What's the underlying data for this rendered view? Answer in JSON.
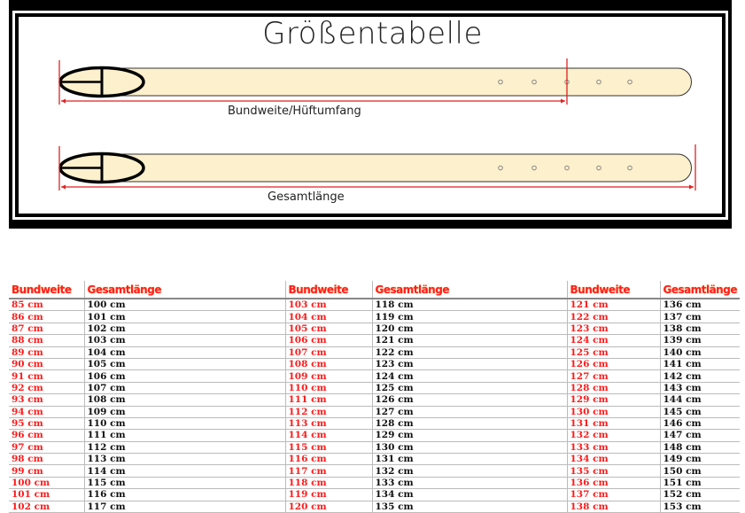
{
  "title": "Größentabelle",
  "diagram": {
    "label_waist": "Bundweite/Hüftumfang",
    "label_total": "Gesamtlänge",
    "belt_color": "#fdf0cc",
    "measure_color": "#e02020"
  },
  "table": {
    "headers": [
      "Bundweite",
      "Gesamtlänge",
      "Bundweite",
      "Gesamtlänge",
      "Bundweite",
      "Gesamtlänge"
    ],
    "rows": [
      [
        "85 cm",
        "100 cm",
        "103 cm",
        "118 cm",
        "121 cm",
        "136 cm"
      ],
      [
        "86 cm",
        "101 cm",
        "104 cm",
        "119 cm",
        "122 cm",
        "137 cm"
      ],
      [
        "87 cm",
        "102 cm",
        "105 cm",
        "120 cm",
        "123 cm",
        "138 cm"
      ],
      [
        "88 cm",
        "103 cm",
        "106 cm",
        "121 cm",
        "124 cm",
        "139 cm"
      ],
      [
        "89 cm",
        "104 cm",
        "107 cm",
        "122 cm",
        "125 cm",
        "140 cm"
      ],
      [
        "90 cm",
        "105 cm",
        "108 cm",
        "123 cm",
        "126 cm",
        "141 cm"
      ],
      [
        "91 cm",
        "106 cm",
        "109 cm",
        "124 cm",
        "127 cm",
        "142 cm"
      ],
      [
        "92 cm",
        "107 cm",
        "110 cm",
        "125 cm",
        "128 cm",
        "143 cm"
      ],
      [
        "93 cm",
        "108 cm",
        "111 cm",
        "126 cm",
        "129 cm",
        "144 cm"
      ],
      [
        "94 cm",
        "109 cm",
        "112 cm",
        "127 cm",
        "130 cm",
        "145 cm"
      ],
      [
        "95 cm",
        "110 cm",
        "113 cm",
        "128 cm",
        "131 cm",
        "146 cm"
      ],
      [
        "96 cm",
        "111 cm",
        "114 cm",
        "129 cm",
        "132 cm",
        "147 cm"
      ],
      [
        "97 cm",
        "112 cm",
        "115 cm",
        "130 cm",
        "133 cm",
        "148 cm"
      ],
      [
        "98 cm",
        "113 cm",
        "116 cm",
        "131 cm",
        "134 cm",
        "149 cm"
      ],
      [
        "99 cm",
        "114 cm",
        "117 cm",
        "132 cm",
        "135 cm",
        "150 cm"
      ],
      [
        "100 cm",
        "115 cm",
        "118 cm",
        "133 cm",
        "136 cm",
        "151 cm"
      ],
      [
        "101 cm",
        "116 cm",
        "119 cm",
        "134 cm",
        "137 cm",
        "152 cm"
      ],
      [
        "102 cm",
        "117 cm",
        "120 cm",
        "135 cm",
        "138 cm",
        "153 cm"
      ]
    ]
  }
}
